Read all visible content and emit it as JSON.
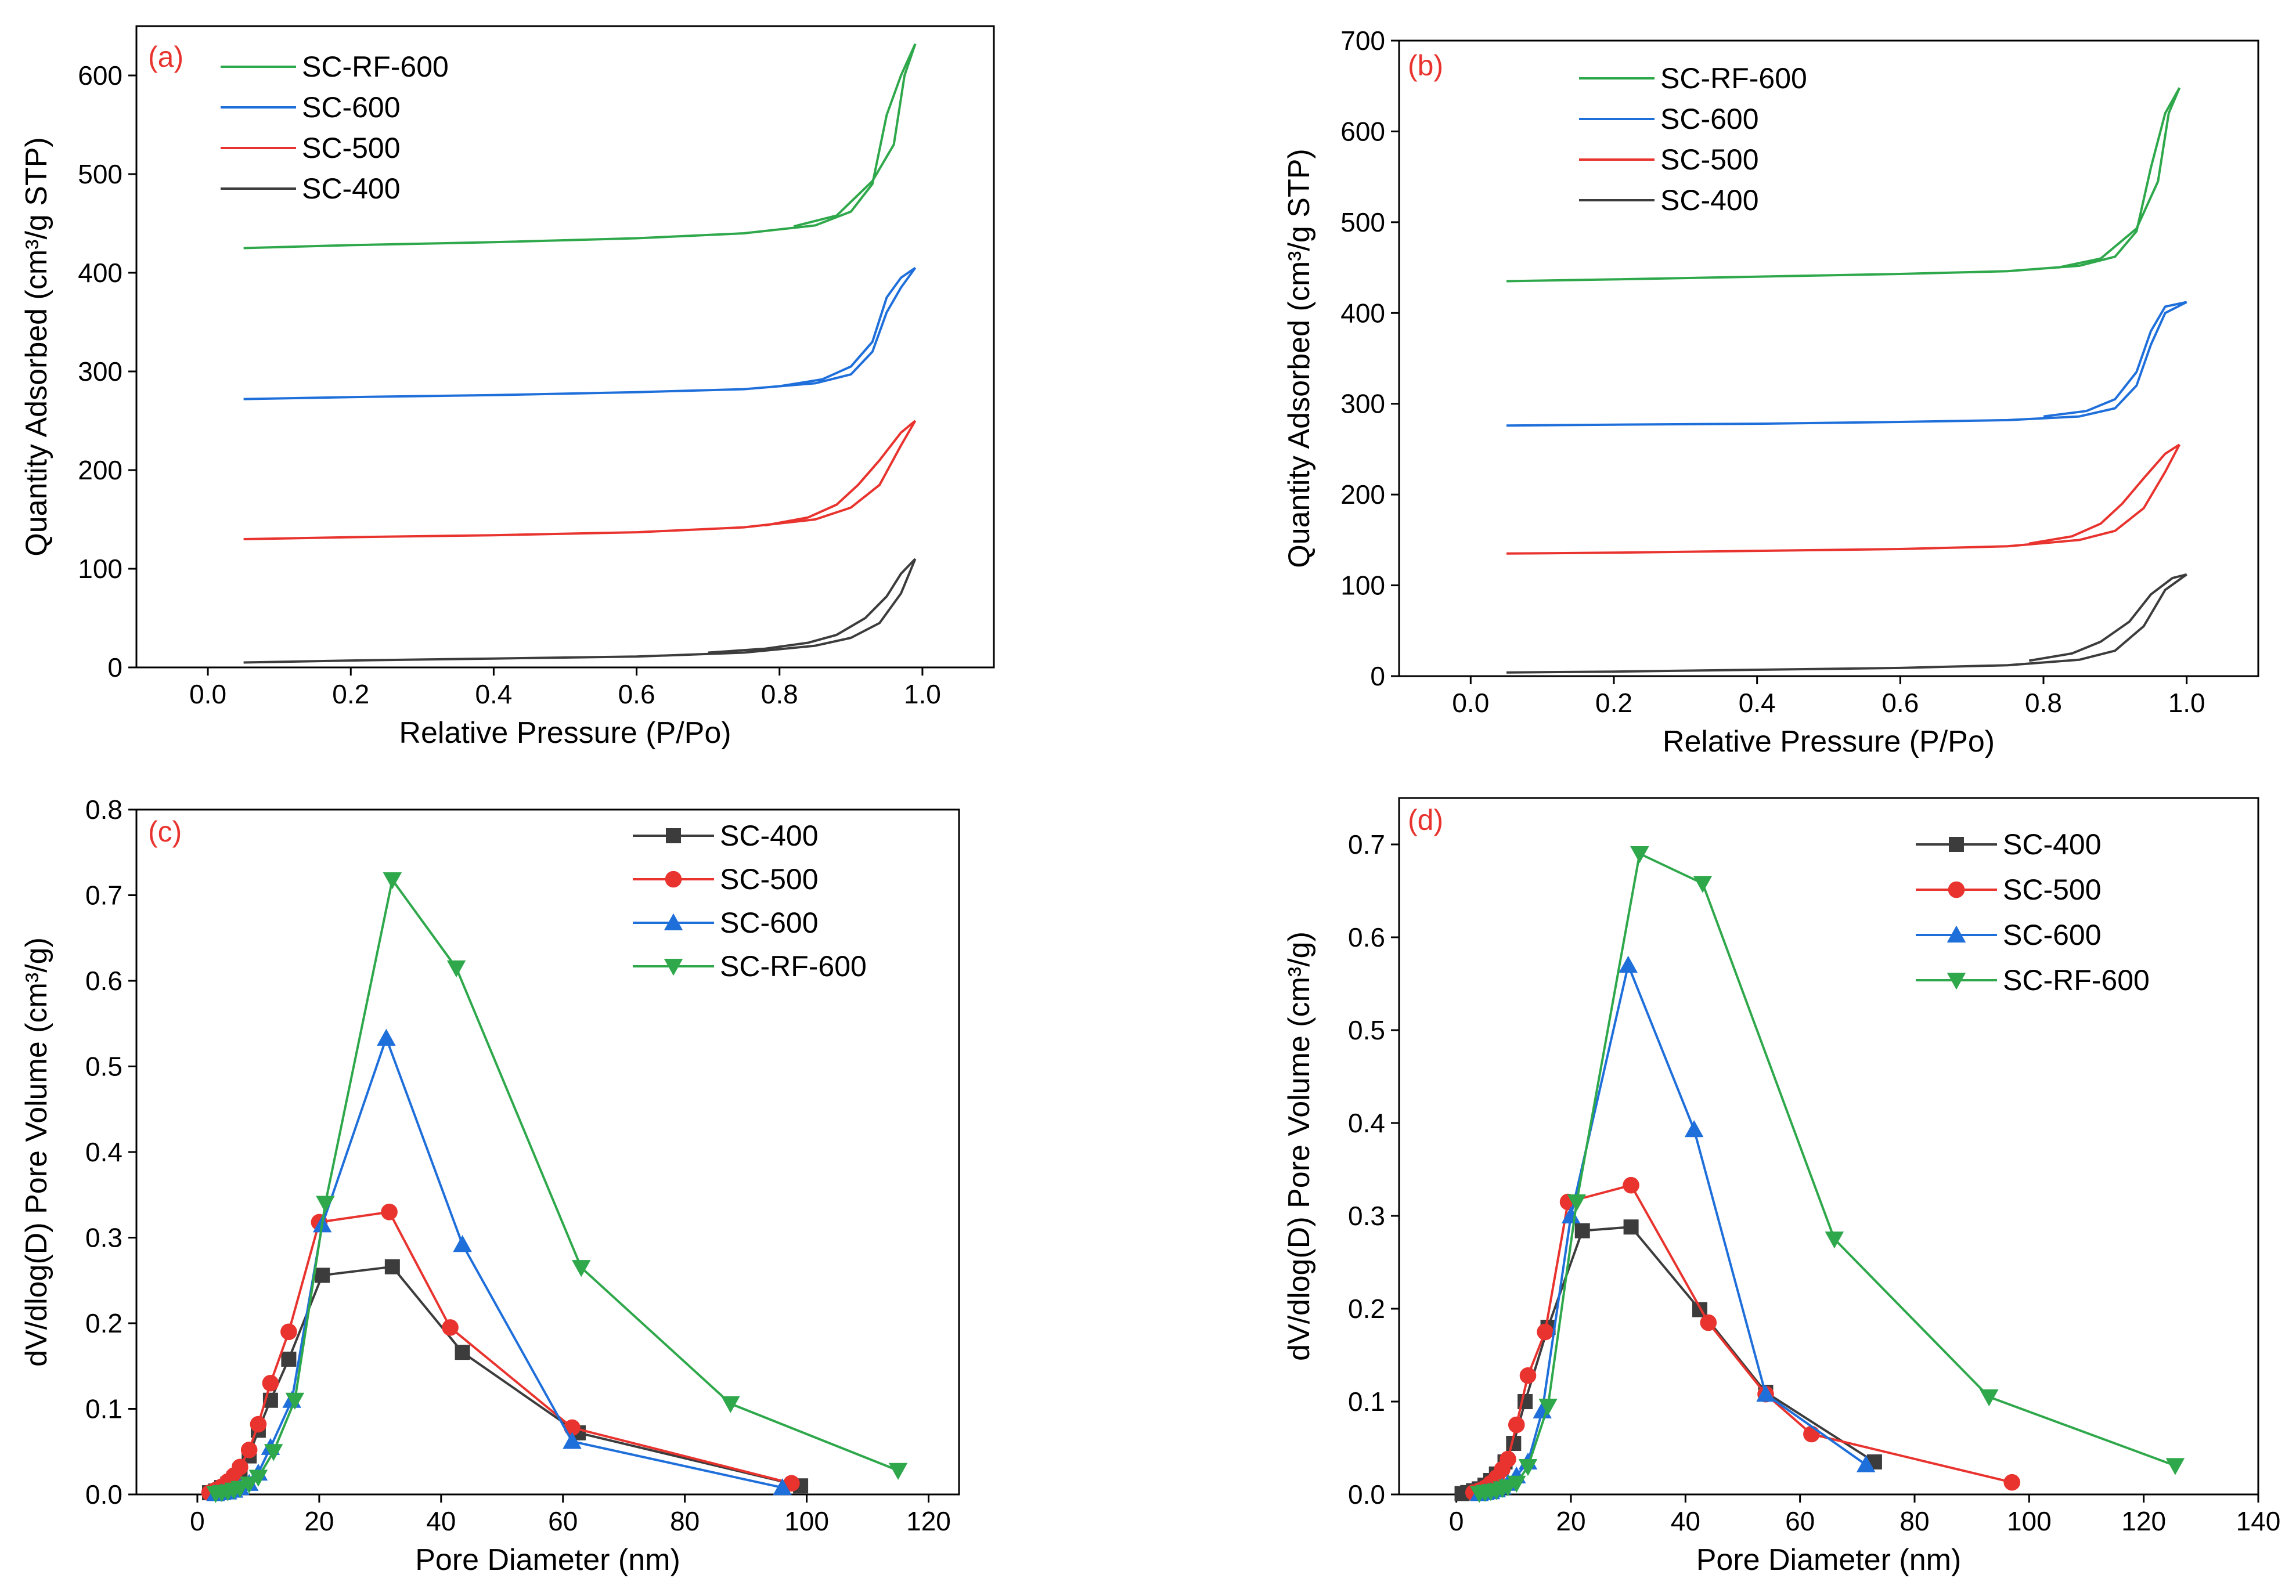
{
  "chart_data": [
    {
      "type": "line",
      "panel_label": "(a)",
      "xlabel": "Relative Pressure (P/Po)",
      "ylabel": "Quantity Adsorbed (cm³/g STP)",
      "xlim": [
        -0.1,
        1.1
      ],
      "ylim": [
        0,
        650
      ],
      "xticks": [
        0.0,
        0.2,
        0.4,
        0.6,
        0.8,
        1.0
      ],
      "xtick_labels": [
        "0.0",
        "0.2",
        "0.4",
        "0.6",
        "0.8",
        "1.0"
      ],
      "yticks": [
        0,
        100,
        200,
        300,
        400,
        500,
        600
      ],
      "ytick_labels": [
        "0",
        "100",
        "200",
        "300",
        "400",
        "500",
        "600"
      ],
      "legend_position": "top-left",
      "legend_order": [
        3,
        2,
        1,
        0
      ],
      "grid": false,
      "series": [
        {
          "name": "SC-400",
          "color": "#3c3c3c",
          "adsorption": {
            "x": [
              0.05,
              0.2,
              0.4,
              0.6,
              0.75,
              0.85,
              0.9,
              0.94,
              0.97,
              0.99
            ],
            "y": [
              5,
              7,
              9,
              11,
              15,
              22,
              30,
              45,
              75,
              110
            ]
          },
          "desorption": {
            "x": [
              0.99,
              0.97,
              0.95,
              0.92,
              0.88,
              0.84,
              0.78,
              0.7
            ],
            "y": [
              110,
              95,
              72,
              50,
              33,
              25,
              19,
              15
            ]
          }
        },
        {
          "name": "SC-500",
          "color": "#e8332e",
          "adsorption": {
            "x": [
              0.05,
              0.2,
              0.4,
              0.6,
              0.75,
              0.85,
              0.9,
              0.94,
              0.97,
              0.99
            ],
            "y": [
              130,
              132,
              134,
              137,
              142,
              150,
              162,
              185,
              225,
              250
            ]
          },
          "desorption": {
            "x": [
              0.99,
              0.97,
              0.94,
              0.91,
              0.88,
              0.84,
              0.78
            ],
            "y": [
              250,
              238,
              210,
              185,
              165,
              152,
              144
            ]
          }
        },
        {
          "name": "SC-600",
          "color": "#1f6fdb",
          "adsorption": {
            "x": [
              0.05,
              0.2,
              0.4,
              0.6,
              0.75,
              0.85,
              0.9,
              0.93,
              0.95,
              0.97,
              0.99
            ],
            "y": [
              272,
              274,
              276,
              279,
              282,
              288,
              297,
              320,
              360,
              385,
              405
            ]
          },
          "desorption": {
            "x": [
              0.99,
              0.97,
              0.95,
              0.93,
              0.9,
              0.86,
              0.8
            ],
            "y": [
              405,
              395,
              375,
              330,
              305,
              292,
              285
            ]
          }
        },
        {
          "name": "SC-RF-600",
          "color": "#2ea84b",
          "adsorption": {
            "x": [
              0.05,
              0.2,
              0.4,
              0.6,
              0.75,
              0.85,
              0.9,
              0.93,
              0.95,
              0.97,
              0.99
            ],
            "y": [
              425,
              428,
              431,
              435,
              440,
              448,
              462,
              490,
              560,
              600,
              632
            ]
          },
          "desorption": {
            "x": [
              0.99,
              0.975,
              0.96,
              0.93,
              0.88,
              0.82
            ],
            "y": [
              632,
              600,
              530,
              493,
              458,
              447
            ]
          }
        }
      ]
    },
    {
      "type": "line",
      "panel_label": "(b)",
      "xlabel": "Relative Pressure (P/Po)",
      "ylabel": "Quantity Adsorbed (cm³/g STP)",
      "xlim": [
        -0.1,
        1.1
      ],
      "ylim": [
        0,
        700
      ],
      "xticks": [
        0.0,
        0.2,
        0.4,
        0.6,
        0.8,
        1.0
      ],
      "xtick_labels": [
        "0.0",
        "0.2",
        "0.4",
        "0.6",
        "0.8",
        "1.0"
      ],
      "yticks": [
        0,
        100,
        200,
        300,
        400,
        500,
        600,
        700
      ],
      "ytick_labels": [
        "0",
        "100",
        "200",
        "300",
        "400",
        "500",
        "600",
        "700"
      ],
      "legend_position": "top-left",
      "legend_order": [
        3,
        2,
        1,
        0
      ],
      "grid": false,
      "series": [
        {
          "name": "SC-400",
          "color": "#3c3c3c",
          "adsorption": {
            "x": [
              0.05,
              0.2,
              0.4,
              0.6,
              0.75,
              0.85,
              0.9,
              0.94,
              0.97,
              1.0
            ],
            "y": [
              4,
              5,
              7,
              9,
              12,
              18,
              28,
              55,
              95,
              112
            ]
          },
          "desorption": {
            "x": [
              1.0,
              0.98,
              0.95,
              0.92,
              0.88,
              0.84,
              0.78
            ],
            "y": [
              112,
              108,
              90,
              60,
              38,
              25,
              17
            ]
          }
        },
        {
          "name": "SC-500",
          "color": "#e8332e",
          "adsorption": {
            "x": [
              0.05,
              0.2,
              0.4,
              0.6,
              0.75,
              0.85,
              0.9,
              0.94,
              0.97,
              0.99
            ],
            "y": [
              135,
              136,
              138,
              140,
              143,
              150,
              160,
              185,
              225,
              255
            ]
          },
          "desorption": {
            "x": [
              0.99,
              0.97,
              0.94,
              0.91,
              0.88,
              0.84,
              0.78
            ],
            "y": [
              255,
              245,
              218,
              190,
              168,
              154,
              146
            ]
          }
        },
        {
          "name": "SC-600",
          "color": "#1f6fdb",
          "adsorption": {
            "x": [
              0.05,
              0.2,
              0.4,
              0.6,
              0.75,
              0.85,
              0.9,
              0.93,
              0.95,
              0.97,
              1.0
            ],
            "y": [
              276,
              277,
              278,
              280,
              282,
              286,
              295,
              320,
              365,
              400,
              412
            ]
          },
          "desorption": {
            "x": [
              1.0,
              0.97,
              0.95,
              0.93,
              0.9,
              0.86,
              0.8
            ],
            "y": [
              412,
              407,
              380,
              335,
              305,
              292,
              286
            ]
          }
        },
        {
          "name": "SC-RF-600",
          "color": "#2ea84b",
          "adsorption": {
            "x": [
              0.05,
              0.2,
              0.4,
              0.6,
              0.75,
              0.85,
              0.9,
              0.93,
              0.95,
              0.97,
              0.99
            ],
            "y": [
              435,
              437,
              440,
              443,
              446,
              452,
              462,
              490,
              560,
              620,
              648
            ]
          },
          "desorption": {
            "x": [
              0.99,
              0.975,
              0.96,
              0.93,
              0.88,
              0.82
            ],
            "y": [
              648,
              620,
              545,
              493,
              460,
              450
            ]
          }
        }
      ]
    },
    {
      "type": "line",
      "panel_label": "(c)",
      "xlabel": "Pore Diameter (nm)",
      "ylabel": "dV/dlog(D) Pore Volume (cm³/g)",
      "xlim": [
        -10,
        125
      ],
      "ylim": [
        0,
        0.8
      ],
      "xticks": [
        0,
        20,
        40,
        60,
        80,
        100,
        120
      ],
      "xtick_labels": [
        "0",
        "20",
        "40",
        "60",
        "80",
        "100",
        "120"
      ],
      "yticks": [
        0.0,
        0.1,
        0.2,
        0.3,
        0.4,
        0.5,
        0.6,
        0.7,
        0.8
      ],
      "ytick_labels": [
        "0.0",
        "0.1",
        "0.2",
        "0.3",
        "0.4",
        "0.5",
        "0.6",
        "0.7",
        "0.8"
      ],
      "legend_position": "top-right",
      "legend_order": [
        0,
        1,
        2,
        3
      ],
      "grid": false,
      "series": [
        {
          "name": "SC-400",
          "color": "#3c3c3c",
          "marker": "square",
          "x": [
            2,
            3,
            4,
            5,
            6,
            7,
            8.5,
            10,
            12,
            15,
            20.5,
            32,
            43.5,
            62.5,
            99
          ],
          "y": [
            0.002,
            0.004,
            0.008,
            0.012,
            0.018,
            0.028,
            0.045,
            0.075,
            0.11,
            0.158,
            0.256,
            0.266,
            0.166,
            0.072,
            0.01
          ]
        },
        {
          "name": "SC-500",
          "color": "#e8332e",
          "marker": "circle",
          "x": [
            2,
            3,
            4,
            5,
            6,
            7,
            8.5,
            10,
            12,
            15,
            20,
            31.5,
            41.5,
            61.5,
            97.5
          ],
          "y": [
            0.002,
            0.005,
            0.009,
            0.015,
            0.022,
            0.032,
            0.052,
            0.082,
            0.13,
            0.19,
            0.318,
            0.33,
            0.195,
            0.078,
            0.013
          ]
        },
        {
          "name": "SC-600",
          "color": "#1f6fdb",
          "marker": "triangle-up",
          "x": [
            3,
            4,
            5,
            6,
            7,
            8.5,
            10,
            12,
            15.5,
            20.5,
            31,
            43.5,
            61.5,
            96
          ],
          "y": [
            0.001,
            0.002,
            0.003,
            0.005,
            0.008,
            0.013,
            0.025,
            0.055,
            0.11,
            0.315,
            0.533,
            0.292,
            0.062,
            0.008
          ]
        },
        {
          "name": "SC-RF-600",
          "color": "#2ea84b",
          "marker": "triangle-down",
          "x": [
            3,
            4,
            5,
            6,
            7,
            8.5,
            10,
            12.5,
            16,
            21,
            32,
            42.5,
            63,
            87.5,
            115
          ],
          "y": [
            0.001,
            0.002,
            0.003,
            0.005,
            0.007,
            0.012,
            0.02,
            0.05,
            0.11,
            0.34,
            0.718,
            0.615,
            0.265,
            0.106,
            0.028
          ]
        }
      ]
    },
    {
      "type": "line",
      "panel_label": "(d)",
      "xlabel": "Pore Diameter (nm)",
      "ylabel": "dV/dlog(D) Pore Volume (cm³/g)",
      "xlim": [
        -10,
        140
      ],
      "ylim": [
        0,
        0.75
      ],
      "xticks": [
        0,
        20,
        40,
        60,
        80,
        100,
        120,
        140
      ],
      "xtick_labels": [
        "0",
        "20",
        "40",
        "60",
        "80",
        "100",
        "120",
        "140"
      ],
      "yticks": [
        0.0,
        0.1,
        0.2,
        0.3,
        0.4,
        0.5,
        0.6,
        0.7
      ],
      "ytick_labels": [
        "0.0",
        "0.1",
        "0.2",
        "0.3",
        "0.4",
        "0.5",
        "0.6",
        "0.7"
      ],
      "legend_position": "top-right",
      "legend_order": [
        0,
        1,
        2,
        3
      ],
      "grid": false,
      "series": [
        {
          "name": "SC-400",
          "color": "#3c3c3c",
          "marker": "square",
          "x": [
            1,
            2,
            3,
            4,
            5,
            6,
            7,
            8.5,
            10,
            12,
            16,
            22,
            30.5,
            42.5,
            54,
            73
          ],
          "y": [
            0.001,
            0.002,
            0.004,
            0.006,
            0.01,
            0.015,
            0.022,
            0.035,
            0.055,
            0.1,
            0.18,
            0.284,
            0.288,
            0.199,
            0.11,
            0.035
          ]
        },
        {
          "name": "SC-500",
          "color": "#e8332e",
          "marker": "circle",
          "x": [
            3,
            4,
            5,
            6,
            7,
            8,
            9,
            10.5,
            12.5,
            15.5,
            19.5,
            30.5,
            44,
            54,
            62,
            97
          ],
          "y": [
            0.002,
            0.004,
            0.007,
            0.012,
            0.018,
            0.027,
            0.038,
            0.075,
            0.128,
            0.175,
            0.315,
            0.333,
            0.185,
            0.108,
            0.065,
            0.013
          ]
        },
        {
          "name": "SC-600",
          "color": "#1f6fdb",
          "marker": "triangle-up",
          "x": [
            4,
            5,
            6,
            7,
            8,
            9,
            10.5,
            12.5,
            15,
            20,
            30,
            41.5,
            54,
            71.5
          ],
          "y": [
            0.001,
            0.002,
            0.003,
            0.005,
            0.008,
            0.012,
            0.02,
            0.035,
            0.09,
            0.3,
            0.57,
            0.393,
            0.108,
            0.032
          ]
        },
        {
          "name": "SC-RF-600",
          "color": "#2ea84b",
          "marker": "triangle-down",
          "x": [
            4,
            5,
            6,
            7,
            8,
            9,
            10.5,
            12.5,
            16,
            21,
            32,
            43,
            66,
            93,
            125.5
          ],
          "y": [
            0.001,
            0.002,
            0.003,
            0.004,
            0.006,
            0.008,
            0.012,
            0.03,
            0.095,
            0.315,
            0.69,
            0.658,
            0.275,
            0.105,
            0.031
          ]
        }
      ]
    }
  ]
}
